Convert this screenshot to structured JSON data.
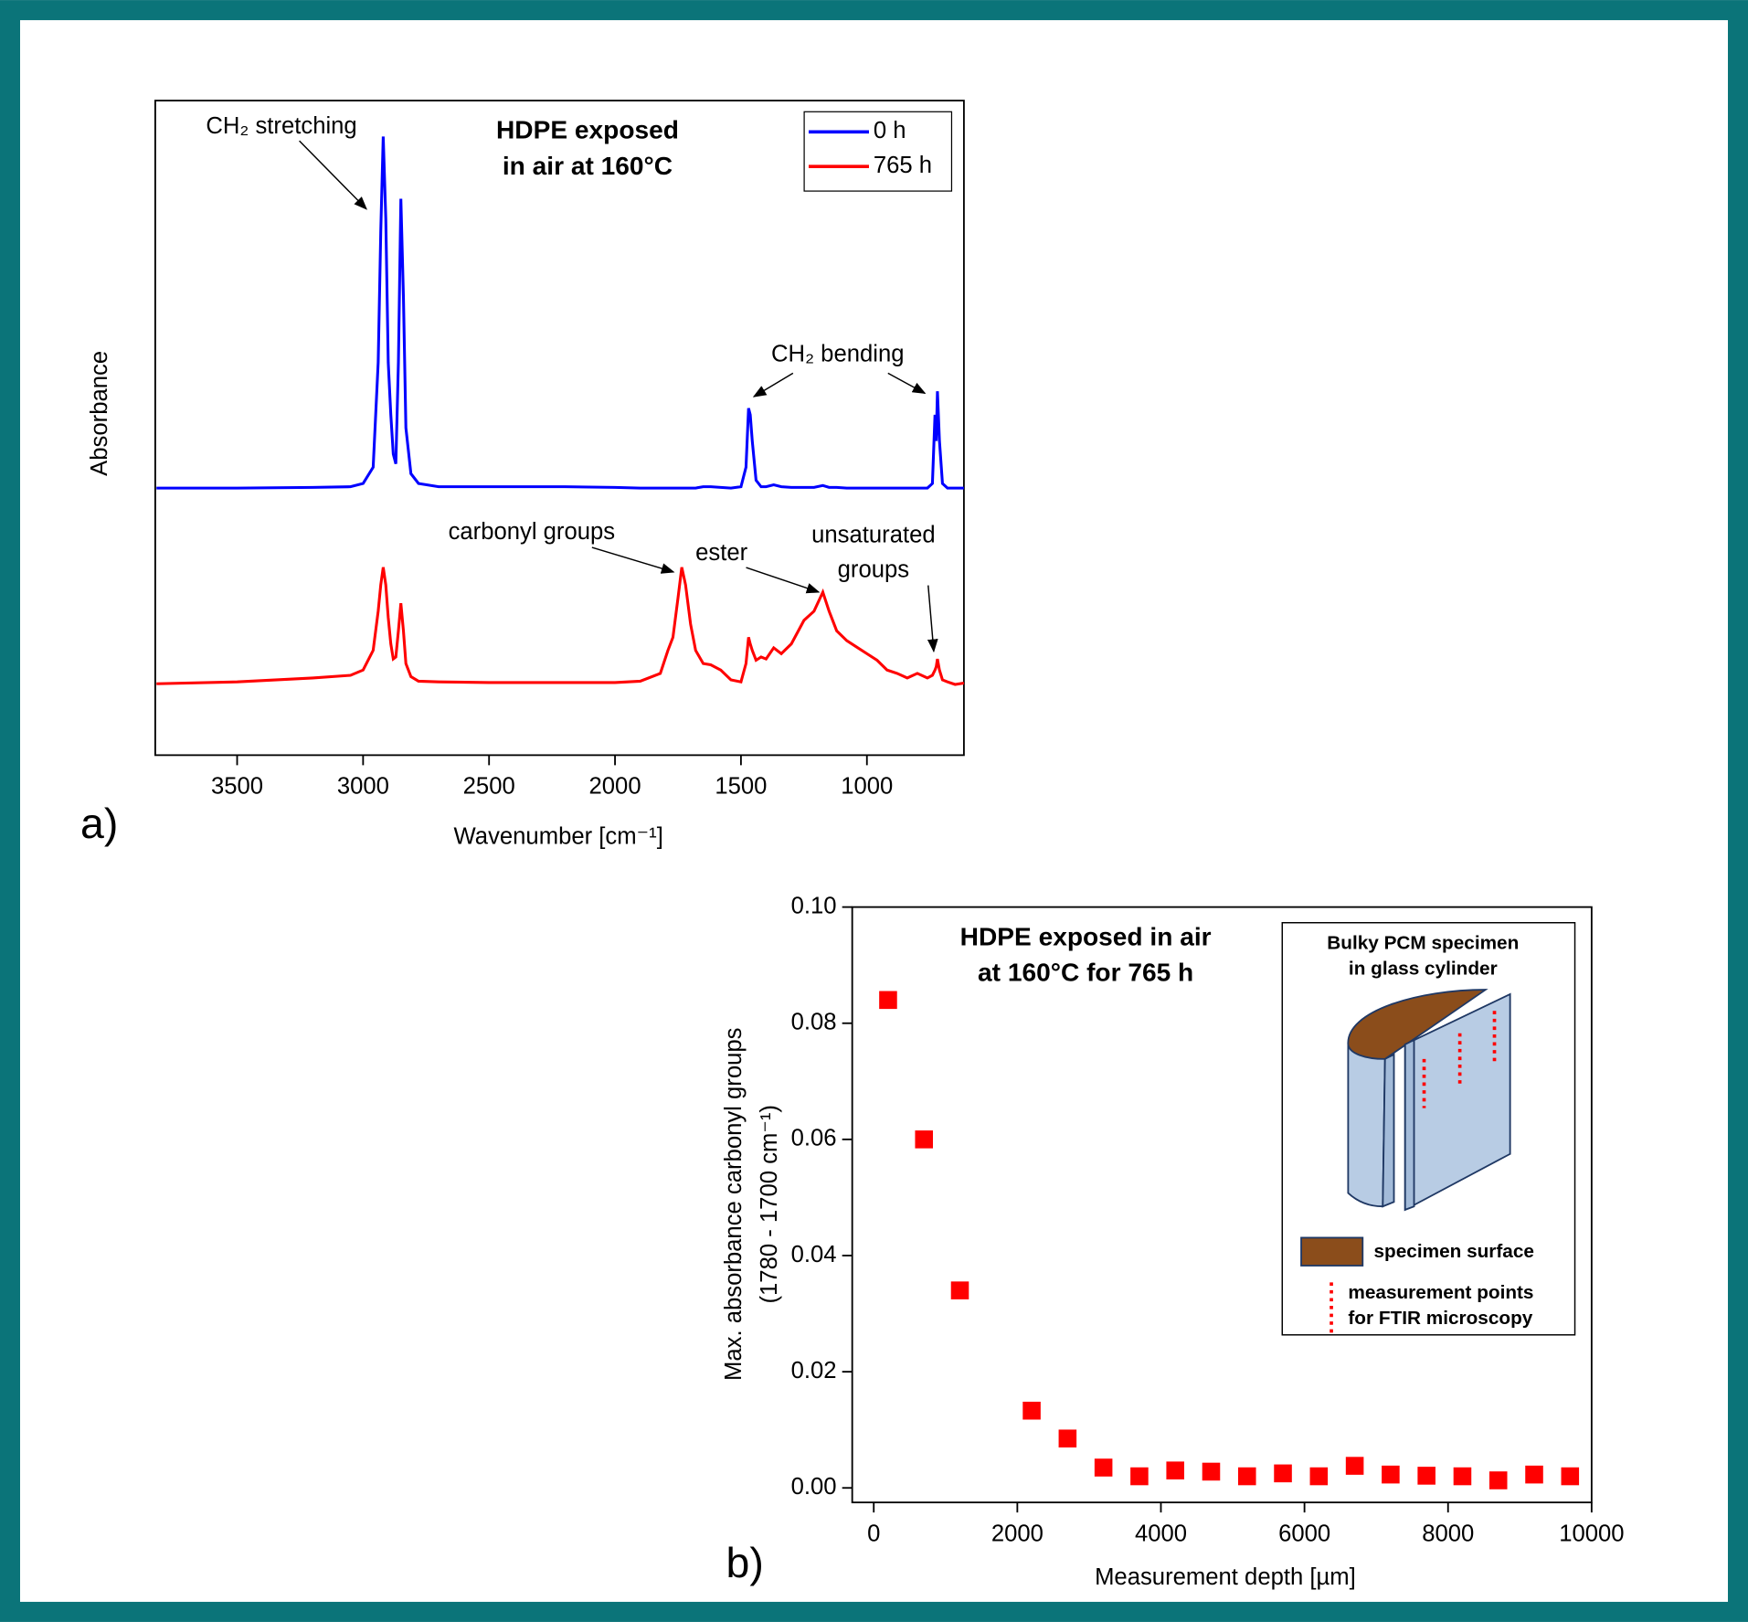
{
  "chart_data": [
    {
      "type": "line",
      "title": [
        "HDPE exposed",
        "in air at 160°C"
      ],
      "panel": "a)",
      "x_label": "Wavenumber [cm⁻¹]",
      "y_label": "Absorbance",
      "xlim": [
        3825,
        615
      ],
      "ylim": [
        0,
        100
      ],
      "xticks": [
        3500,
        3000,
        2500,
        2000,
        1500,
        1000
      ],
      "legend": "upper right",
      "annotations": [
        "CH₂ stretching",
        "CH₂ bending",
        "carbonyl groups",
        "ester",
        "unsaturated",
        "groups"
      ],
      "x": [
        3820,
        3500,
        3200,
        3050,
        3000,
        2960,
        2940,
        2930,
        2920,
        2910,
        2900,
        2890,
        2880,
        2870,
        2860,
        2850,
        2840,
        2830,
        2810,
        2780,
        2700,
        2500,
        2200,
        2000,
        1900,
        1820,
        1790,
        1770,
        1750,
        1735,
        1720,
        1700,
        1680,
        1650,
        1620,
        1580,
        1540,
        1500,
        1480,
        1470,
        1463,
        1455,
        1440,
        1420,
        1400,
        1370,
        1340,
        1300,
        1250,
        1210,
        1175,
        1150,
        1120,
        1080,
        1040,
        1000,
        960,
        920,
        880,
        840,
        800,
        760,
        740,
        730,
        725,
        720,
        712,
        700,
        680,
        650,
        615
      ],
      "series": [
        {
          "name": "0 h",
          "color": "#0000ff",
          "values": [
            40.8,
            40.8,
            40.9,
            41.0,
            41.5,
            44,
            60,
            80,
            94.5,
            82,
            60,
            52,
            46,
            44.5,
            60,
            85,
            70,
            50,
            43,
            41.5,
            41,
            41,
            41,
            40.9,
            40.8,
            40.8,
            40.8,
            40.8,
            40.8,
            40.8,
            40.8,
            40.8,
            40.8,
            41,
            41,
            40.9,
            40.8,
            41,
            44,
            53,
            52,
            48,
            42,
            41,
            41,
            41.3,
            41,
            40.9,
            40.9,
            40.9,
            41.2,
            40.9,
            40.9,
            40.8,
            40.8,
            40.8,
            40.8,
            40.8,
            40.8,
            40.8,
            40.8,
            40.8,
            41.5,
            52,
            48,
            55.6,
            48,
            41.5,
            40.8,
            40.8,
            40.8
          ]
        },
        {
          "name": "765 h",
          "color": "#ff0000",
          "values": [
            10.9,
            11.2,
            11.8,
            12.2,
            13,
            16,
            22,
            26,
            28.7,
            26,
            21,
            17,
            14.7,
            15,
            19,
            23.2,
            19,
            14,
            12,
            11.3,
            11.2,
            11.1,
            11.1,
            11.1,
            11.3,
            12.5,
            16,
            18,
            24,
            28.7,
            26,
            20,
            16,
            14,
            13.8,
            13,
            11.5,
            11.2,
            14,
            18,
            17,
            16,
            14.5,
            15,
            14.7,
            16.4,
            15.5,
            17,
            20.6,
            22,
            24.9,
            22,
            19,
            17.5,
            16.5,
            15.5,
            14.5,
            13,
            12.5,
            11.8,
            12.5,
            11.8,
            12.2,
            13,
            13.5,
            14.7,
            13,
            11.5,
            11.2,
            10.8,
            11
          ]
        }
      ]
    },
    {
      "type": "scatter",
      "title": [
        "HDPE exposed in air",
        "at 160°C for 765 h"
      ],
      "panel": "b)",
      "x_label": "Measurement depth [µm]",
      "y_label": [
        "Max. absorbance carbonyl groups",
        "(1780 - 1700 cm⁻¹)"
      ],
      "xlim": [
        -300,
        10000
      ],
      "ylim": [
        -0.0025,
        0.1
      ],
      "xticks": [
        0,
        2000,
        4000,
        6000,
        8000,
        10000
      ],
      "yticks": [
        {
          "value": 0,
          "label": "0.00"
        },
        {
          "value": 0.02,
          "label": "0.02"
        },
        {
          "value": 0.04,
          "label": "0.04"
        },
        {
          "value": 0.06,
          "label": "0.06"
        },
        {
          "value": 0.08,
          "label": "0.08"
        },
        {
          "value": 0.1,
          "label": "0.10"
        }
      ],
      "color": "#ff0000",
      "x": [
        200,
        700,
        1200,
        2200,
        2700,
        3200,
        3700,
        4200,
        4700,
        5200,
        5700,
        6200,
        6700,
        7200,
        7700,
        8200,
        8700,
        9200,
        9700
      ],
      "values": [
        0.084,
        0.06,
        0.034,
        0.0133,
        0.0085,
        0.0035,
        0.002,
        0.003,
        0.0028,
        0.002,
        0.0025,
        0.002,
        0.0038,
        0.0023,
        0.0021,
        0.002,
        0.0013,
        0.0023,
        0.002
      ],
      "inset": {
        "title": [
          "Bulky PCM specimen",
          "in glass cylinder"
        ],
        "legend": [
          "specimen surface",
          "measurement points",
          "for FTIR microscopy"
        ]
      }
    }
  ]
}
